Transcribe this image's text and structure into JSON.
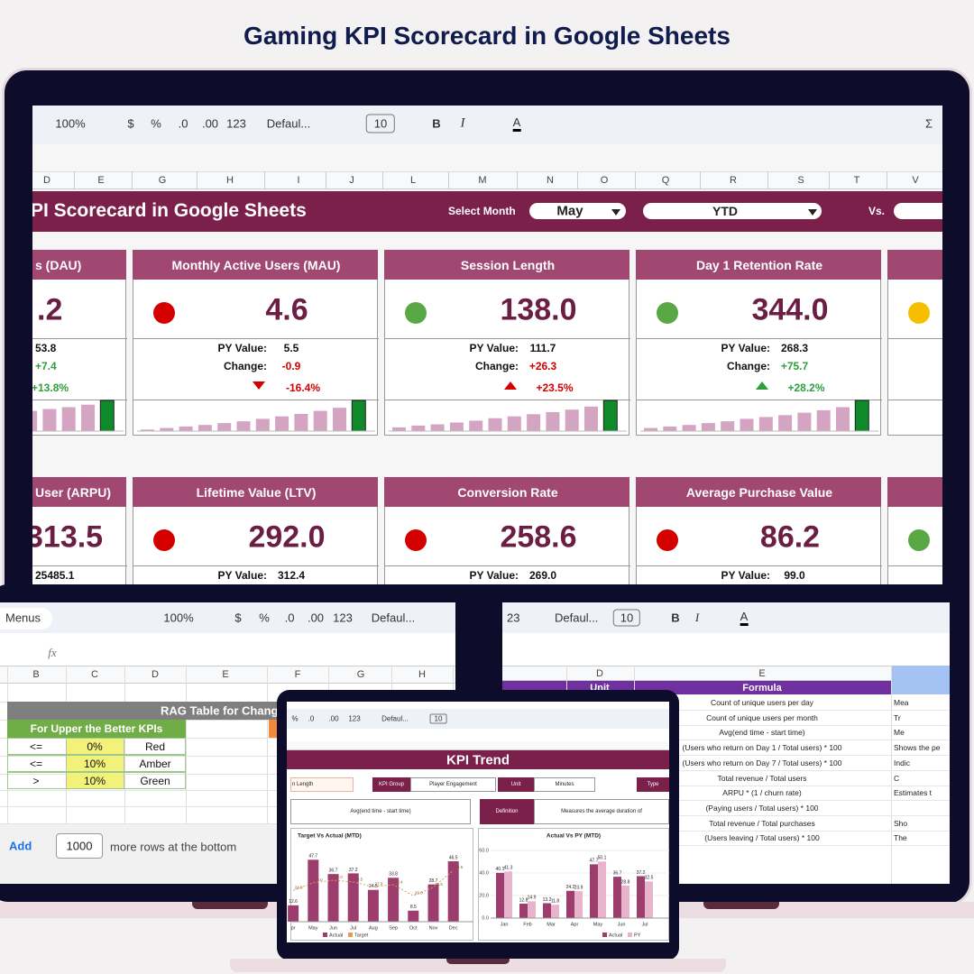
{
  "title": "Gaming KPI Scorecard in Google Sheets",
  "main_sheet": {
    "toolbar": [
      "100%",
      "$",
      "%",
      ".0",
      ".00",
      "123",
      "Defaul...",
      "10",
      "B",
      "I",
      "A",
      "Σ"
    ],
    "columns": [
      "D",
      "E",
      "G",
      "H",
      "I",
      "J",
      "L",
      "M",
      "N",
      "O",
      "Q",
      "R",
      "S",
      "T",
      "V"
    ],
    "banner": "PI Scorecard in Google Sheets",
    "select_month_label": "Select Month",
    "month": "May",
    "period": "YTD",
    "vs_label": "Vs.",
    "py_label": "PY Value:",
    "change_label": "Change:",
    "cards": [
      {
        "title": "s (DAU)",
        "value": ".2",
        "py": "53.8",
        "change": "+7.4",
        "change_pct": "+13.8%",
        "change_color": "#2e9e3e",
        "trend": [
          20,
          28,
          34,
          40,
          48,
          55,
          62,
          66,
          72,
          78,
          86,
          100
        ]
      },
      {
        "title": "Monthly Active Users (MAU)",
        "value": "4.6",
        "status_color": "#d40000",
        "py": "5.5",
        "change": "-0.9",
        "change_pct": "-16.4%",
        "change_color": "#d40000",
        "arrow": "down",
        "arrow_color": "#d40000",
        "trend": [
          5,
          10,
          15,
          20,
          26,
          32,
          40,
          48,
          56,
          66,
          76,
          100
        ]
      },
      {
        "title": "Session Length",
        "value": "138.0",
        "status_color": "#5aa845",
        "py": "111.7",
        "change": "+26.3",
        "change_pct": "+23.5%",
        "change_color": "#d40000",
        "arrow": "up",
        "arrow_color": "#d40000",
        "trend": [
          12,
          18,
          22,
          28,
          34,
          42,
          48,
          55,
          62,
          70,
          80,
          100
        ]
      },
      {
        "title": "Day 1 Retention Rate",
        "value": "344.0",
        "status_color": "#5aa845",
        "py": "268.3",
        "change": "+75.7",
        "change_pct": "+28.2%",
        "change_color": "#2e9e3e",
        "arrow": "up",
        "arrow_color": "#2e9e3e",
        "trend": [
          10,
          15,
          20,
          26,
          32,
          40,
          46,
          52,
          60,
          68,
          78,
          100
        ]
      },
      {
        "status_color": "#f5bf00"
      },
      {
        "title": "User (ARPU)",
        "value": "313.5",
        "py": "25485.1"
      },
      {
        "title": "Lifetime Value (LTV)",
        "value": "292.0",
        "status_color": "#d40000",
        "py": "312.4"
      },
      {
        "title": "Conversion Rate",
        "value": "258.6",
        "status_color": "#d40000",
        "py": "269.0"
      },
      {
        "title": "Average Purchase Value",
        "value": "86.2",
        "status_color": "#d40000",
        "py": "99.0"
      },
      {
        "status_color": "#5aa845"
      }
    ]
  },
  "rag_sheet": {
    "menus": "Menus",
    "toolbar": [
      "100%",
      "$",
      "%",
      ".0",
      ".00",
      "123",
      "Defaul..."
    ],
    "fx": "fx",
    "columns": [
      "B",
      "C",
      "D",
      "E",
      "F",
      "G",
      "H"
    ],
    "table_title": "RAG Table for Chang",
    "section": "For Upper the Better KPIs",
    "rows": [
      [
        "<=",
        "0%",
        "Red"
      ],
      [
        "<=",
        "10%",
        "Amber"
      ],
      [
        ">",
        "10%",
        "Green"
      ]
    ],
    "add": "Add",
    "add_rows": "1000",
    "add_suffix": "more rows at the bottom"
  },
  "formula_sheet": {
    "toolbar": [
      "23",
      "Defaul...",
      "10",
      "B",
      "I",
      "A"
    ],
    "columns": [
      "D",
      "E"
    ],
    "headers": [
      "Unit",
      "Formula"
    ],
    "rows": [
      {
        "formula": "Count of unique users per day",
        "note": "Mea"
      },
      {
        "formula": "Count of unique users per month",
        "note": "Tr"
      },
      {
        "formula": "Avg(end time - start time)",
        "note": "Me"
      },
      {
        "formula": "(Users who return on Day 1 / Total users) * 100",
        "note": "Shows the pe"
      },
      {
        "formula": "(Users who return on Day 7 / Total users) * 100",
        "note": "Indic"
      },
      {
        "formula": "Total revenue / Total users",
        "note": "C"
      },
      {
        "formula": "ARPU * (1 / churn rate)",
        "note": "Estimates t"
      },
      {
        "formula": "(Paying users / Total users) * 100"
      },
      {
        "formula": "Total revenue / Total purchases",
        "note": "Sho"
      },
      {
        "formula": "(Users leaving / Total users) * 100",
        "note": "The"
      }
    ]
  },
  "trend_sheet": {
    "toolbar": [
      "%",
      ".0",
      ".00",
      "123",
      "Defaul...",
      "10"
    ],
    "banner": "KPI Trend",
    "kpi": "n Length",
    "kpi_group_label": "KPI Group",
    "kpi_group": "Player Engagement",
    "unit_label": "Unit",
    "unit": "Minutes",
    "type_label": "Type",
    "formula": "Avg(end time - start time)",
    "definition_label": "Definition",
    "definition": "Measures the average duration of",
    "charts": [
      {
        "type": "bar",
        "title": "Target Vs Actual (MTD)",
        "categories": [
          "pr",
          "May",
          "Jun",
          "Jul",
          "Aug",
          "Sep",
          "Oct",
          "Nov",
          "Dec"
        ],
        "ylim": [
          0,
          50
        ],
        "series": [
          {
            "name": "Actual",
            "color": "#9c3d6e",
            "values": [
              12.6,
              47.7,
              36.7,
              37.2,
              24.5,
              33.8,
              8.5,
              28.7,
              46.5
            ]
          },
          {
            "name": "Target",
            "type": "line",
            "color": "#e39a5a",
            "values": [
              24,
              30,
              32,
              30.5,
              27,
              28.4,
              20,
              26.5,
              39.6
            ],
            "value_labels": [
              "24.0",
              "30.0",
              "32.0",
              "30.5",
              "27.0",
              "28.4",
              "20.0",
              "26.5",
              "39.6"
            ]
          }
        ]
      },
      {
        "type": "bar",
        "title": "Actual Vs PY (MTD)",
        "categories": [
          "Jan",
          "Feb",
          "Mar",
          "Apr",
          "May",
          "Jun",
          "Jul"
        ],
        "ylim": [
          0,
          60
        ],
        "yticks": [
          {
            "value": 0,
            "label": "0.0"
          },
          {
            "value": 20,
            "label": "20.0"
          },
          {
            "value": 40,
            "label": "40.0"
          },
          {
            "value": 60,
            "label": "60.0"
          }
        ],
        "series": [
          {
            "name": "Actual",
            "color": "#9c3d6e",
            "values": [
              40.1,
              12.8,
              13.2,
              24.2,
              47.7,
              36.7,
              37.2
            ]
          },
          {
            "name": "PY",
            "color": "#e8b4cc",
            "values": [
              41.3,
              14.9,
              11.8,
              23.9,
              50.1,
              28.8,
              32.5
            ]
          }
        ]
      }
    ]
  }
}
